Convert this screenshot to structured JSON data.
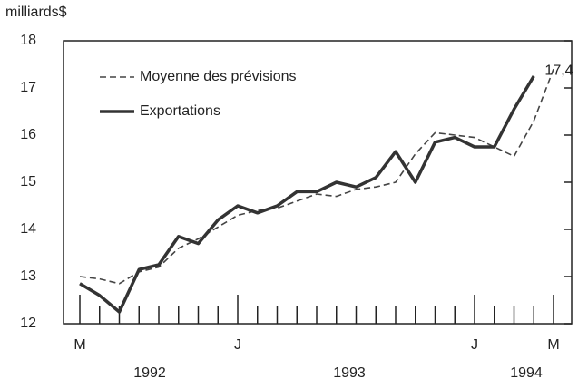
{
  "chart_data": {
    "type": "line",
    "y_label": "milliards$",
    "x": [
      "M",
      null,
      null,
      null,
      null,
      null,
      null,
      null,
      "J",
      null,
      null,
      null,
      null,
      null,
      null,
      null,
      null,
      null,
      null,
      null,
      "J",
      null,
      null,
      null,
      "M"
    ],
    "year_labels": [
      "1992",
      "1993",
      "1994"
    ],
    "series": [
      {
        "name": "Moyenne des prévisions",
        "color": "#444444",
        "dash": true,
        "values": [
          13.0,
          12.95,
          12.85,
          13.1,
          13.2,
          13.6,
          13.8,
          14.05,
          14.3,
          14.4,
          14.45,
          14.6,
          14.75,
          14.7,
          14.85,
          14.9,
          15.0,
          15.6,
          16.05,
          16.0,
          15.95,
          15.75,
          15.55,
          16.3,
          17.4
        ],
        "value_labels": [
          null,
          null,
          null,
          null,
          null,
          null,
          null,
          null,
          null,
          null,
          null,
          null,
          null,
          null,
          null,
          null,
          null,
          null,
          null,
          null,
          null,
          null,
          null,
          null,
          "17,4"
        ]
      },
      {
        "name": "Exportations",
        "color": "#333333",
        "dash": false,
        "values": [
          12.85,
          12.6,
          12.25,
          13.15,
          13.25,
          13.85,
          13.7,
          14.2,
          14.5,
          14.35,
          14.5,
          14.8,
          14.8,
          15.0,
          14.9,
          15.1,
          15.65,
          15.0,
          15.85,
          15.95,
          15.75,
          15.75,
          16.55,
          17.25,
          null
        ]
      }
    ],
    "ylim": [
      12,
      18
    ],
    "yticks": [
      12,
      13,
      14,
      15,
      16,
      17,
      18
    ]
  }
}
